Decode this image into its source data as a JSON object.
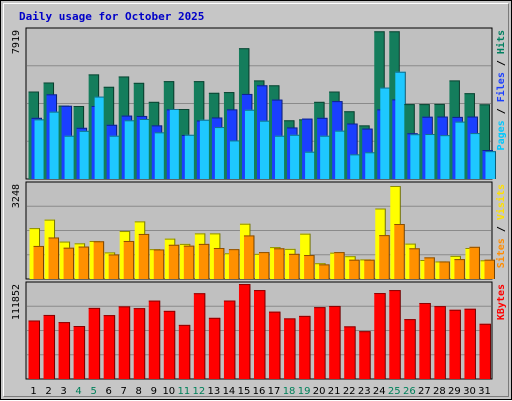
{
  "chart_data": {
    "type": "bar",
    "title": "Daily usage for October 2025",
    "categories": [
      "1",
      "2",
      "3",
      "4",
      "5",
      "6",
      "7",
      "8",
      "9",
      "10",
      "11",
      "12",
      "13",
      "14",
      "15",
      "16",
      "17",
      "18",
      "19",
      "20",
      "21",
      "22",
      "23",
      "24",
      "25",
      "26",
      "27",
      "28",
      "29",
      "30",
      "31"
    ],
    "weekend_days": [
      "4",
      "5",
      "11",
      "12",
      "18",
      "19",
      "25",
      "26"
    ],
    "panels": [
      {
        "id": "hits",
        "max_label": "7919",
        "ylim": [
          0,
          7919
        ],
        "right_label": [
          {
            "text": "Pages",
            "color": "#00c8ff"
          },
          {
            "text": " / ",
            "color": "#000000"
          },
          {
            "text": "Files",
            "color": "#1a3fff"
          },
          {
            "text": " / ",
            "color": "#000000"
          },
          {
            "text": "Hits",
            "color": "#008060"
          }
        ],
        "series": [
          {
            "name": "Hits",
            "color": "#147d5c",
            "values": [
              4650,
              5130,
              3900,
              3880,
              5560,
              4900,
              5450,
              5110,
              4100,
              5200,
              3720,
              5200,
              4580,
              4620,
              6950,
              5240,
              4980,
              3120,
              3170,
              4100,
              4650,
              3600,
              2850,
              7850,
              7850,
              3980,
              3980,
              3990,
              5240,
              4560,
              3970
            ]
          },
          {
            "name": "Files",
            "color": "#1a3fff",
            "values": [
              3250,
              4500,
              3890,
              2720,
              3880,
              2880,
              3370,
              3350,
              2850,
              3700,
              2340,
              3110,
              3270,
              3700,
              4520,
              4980,
              4220,
              2740,
              3210,
              3250,
              4140,
              2950,
              2680,
              3700,
              4230,
              2430,
              3310,
              3320,
              3300,
              3320,
              1540
            ]
          },
          {
            "name": "Pages",
            "color": "#1ec8ff",
            "values": [
              3170,
              3580,
              2300,
              2560,
              4380,
              2300,
              3120,
              3190,
              2480,
              3720,
              2350,
              3150,
              2760,
              2050,
              3680,
              3100,
              2300,
              2350,
              1450,
              2300,
              2570,
              1310,
              1420,
              4860,
              5700,
              2380,
              2390,
              2330,
              3050,
              2440,
              1480
            ]
          }
        ]
      },
      {
        "id": "visits",
        "max_label": "3248",
        "ylim": [
          0,
          3248
        ],
        "right_label": [
          {
            "text": "Sites",
            "color": "#ff8c00"
          },
          {
            "text": " / ",
            "color": "#000000"
          },
          {
            "text": "Visits",
            "color": "#ffe000"
          }
        ],
        "series": [
          {
            "name": "Visits",
            "color": "#ffff00",
            "values": [
              1740,
              2030,
              1280,
              1220,
              1300,
              910,
              1640,
              1970,
              1020,
              1380,
              1200,
              1560,
              1560,
              880,
              1890,
              860,
              1090,
              1030,
              1550,
              540,
              900,
              780,
              670,
              2410,
              3180,
              1210,
              650,
              600,
              790,
              1060,
              640
            ]
          },
          {
            "name": "Sites",
            "color": "#ff9000",
            "values": [
              1130,
              1420,
              1070,
              1110,
              1290,
              840,
              1300,
              1540,
              1010,
              1170,
              1140,
              1200,
              1060,
              1020,
              1490,
              920,
              1050,
              860,
              820,
              500,
              920,
              660,
              660,
              1500,
              1880,
              1050,
              740,
              600,
              680,
              1100,
              660
            ]
          }
        ]
      },
      {
        "id": "kbytes",
        "max_label": "111852",
        "ylim": [
          0,
          111852
        ],
        "right_label": [
          {
            "text": "KBytes",
            "color": "#ff0000"
          }
        ],
        "series": [
          {
            "name": "KBytes",
            "color": "#ff0000",
            "values": [
              68900,
              75400,
              67000,
              62400,
              83700,
              75200,
              85500,
              83400,
              92300,
              80200,
              63700,
              101000,
              72000,
              92400,
              111800,
              104700,
              79300,
              71400,
              74300,
              84600,
              86000,
              62000,
              56300,
              101200,
              104700,
              70500,
              89500,
              85800,
              81500,
              82700,
              65000
            ]
          }
        ]
      }
    ]
  }
}
